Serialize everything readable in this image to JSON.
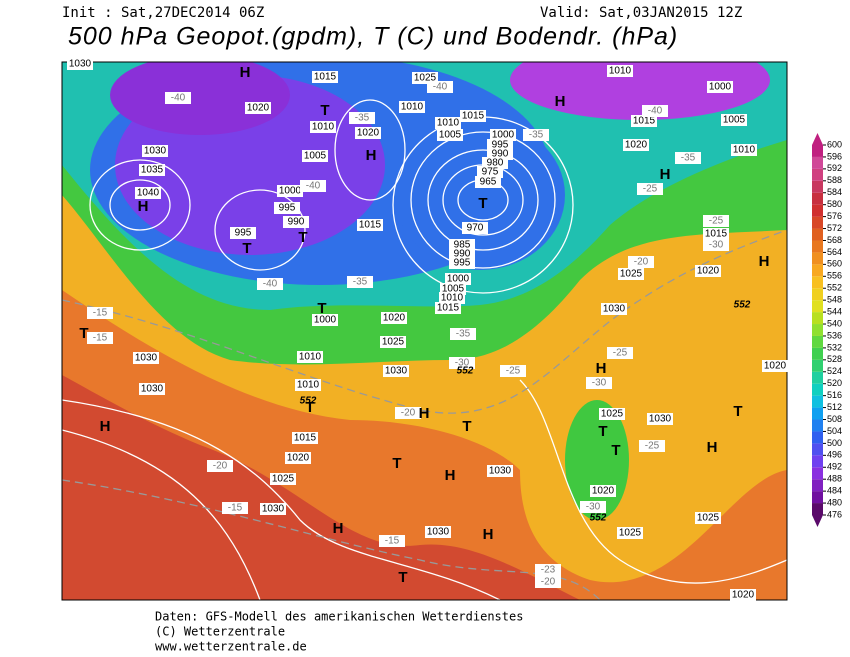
{
  "header": {
    "init": "Init : Sat,27DEC2014 06Z",
    "valid": "Valid: Sat,03JAN2015 12Z",
    "title": "500 hPa Geopot.(gpdm), T (C) und Bodendr. (hPa)"
  },
  "map": {
    "isobar_labels": [
      "1030",
      "1015",
      "1025",
      "1010",
      "1000",
      "1020",
      "1010",
      "1020",
      "1010",
      "1015",
      "1010",
      "1005",
      "1000",
      "995",
      "990",
      "980",
      "975",
      "965",
      "1030",
      "1035",
      "1040",
      "1005",
      "1015",
      "1000",
      "995",
      "990",
      "995",
      "970",
      "985",
      "990",
      "995",
      "1000",
      "1005",
      "1010",
      "1015",
      "1020",
      "1025",
      "1030",
      "1000",
      "1010",
      "1030",
      "1030",
      "1010",
      "1015",
      "1020",
      "1025",
      "1030",
      "1030",
      "1030",
      "1025",
      "1020",
      "1015",
      "1030",
      "1025",
      "1030",
      "1020",
      "1025",
      "1025",
      "1020",
      "1005",
      "1010",
      "1020",
      "1015",
      "1020"
    ],
    "temperature_labels": [
      "-40",
      "-35",
      "-40",
      "-35",
      "-40",
      "-40",
      "-35",
      "-35",
      "-30",
      "-25",
      "-20",
      "-20",
      "-15",
      "-15",
      "-25",
      "-20",
      "-25",
      "-30",
      "-35",
      "-40",
      "-25",
      "-30",
      "-25",
      "-30",
      "-23",
      "-20",
      "-15",
      "-15"
    ],
    "pressure_centers": [
      "H",
      "H",
      "T",
      "H",
      "H",
      "T",
      "T",
      "T",
      "H",
      "H",
      "T",
      "T",
      "T",
      "H",
      "H",
      "T",
      "T",
      "H",
      "H",
      "H",
      "T",
      "H",
      "T",
      "T",
      "H",
      "T"
    ],
    "height_labels": [
      "552",
      "552",
      "552",
      "552"
    ]
  },
  "colorbar": {
    "ticks": [
      476,
      480,
      484,
      488,
      492,
      496,
      500,
      504,
      508,
      512,
      516,
      520,
      524,
      528,
      532,
      536,
      540,
      544,
      548,
      552,
      556,
      560,
      564,
      568,
      572,
      576,
      580,
      584,
      588,
      592,
      596,
      600
    ],
    "colors": [
      "#5a0a6a",
      "#7010a0",
      "#8020c0",
      "#8a30e0",
      "#7040f0",
      "#5050f0",
      "#3060f0",
      "#2080f0",
      "#10a0f0",
      "#10c0e0",
      "#10d0c0",
      "#20d0a0",
      "#30d070",
      "#40d050",
      "#60d840",
      "#90e030",
      "#b8e020",
      "#e0e020",
      "#f0d020",
      "#f8c020",
      "#f8a820",
      "#f09020",
      "#e87820",
      "#e06020",
      "#d84828",
      "#d03030",
      "#c83040",
      "#c83860",
      "#d04080",
      "#d04898",
      "#c02080"
    ]
  },
  "footer": {
    "line1": "Daten: GFS-Modell des amerikanischen Wetterdienstes",
    "line2": "(C) Wetterzentrale",
    "line3": "www.wetterzentrale.de"
  }
}
